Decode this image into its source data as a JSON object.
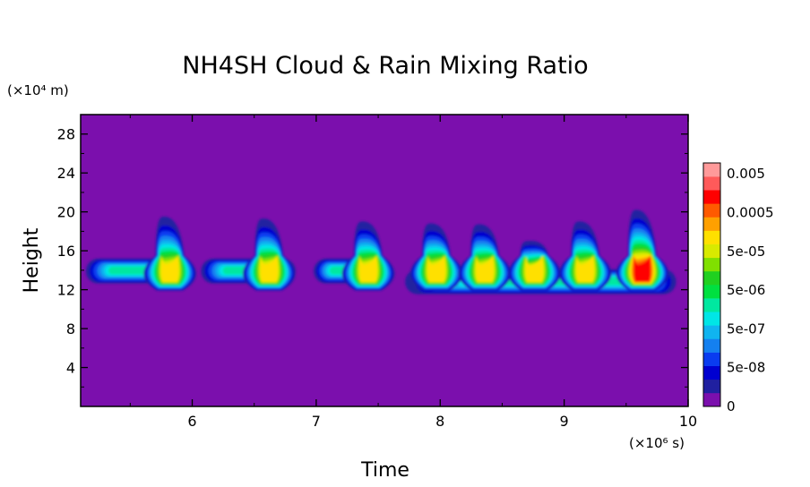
{
  "chart_data": {
    "type": "heatmap",
    "title": "NH4SH Cloud & Rain Mixing Ratio",
    "xlabel": "Time",
    "ylabel": "Height",
    "x_unit": "(×10⁶ s)",
    "y_unit": "(×10⁴ m)",
    "xlim": [
      5.1,
      10
    ],
    "ylim": [
      0,
      30
    ],
    "x_ticks": [
      6,
      7,
      8,
      9,
      10
    ],
    "y_ticks": [
      4,
      8,
      12,
      16,
      20,
      24,
      28
    ],
    "background_color": "#7b0fad",
    "colorbar": {
      "levels": [
        "0",
        "",
        "5e-08",
        "",
        "5e-07",
        "",
        "5e-06",
        "",
        "5e-05",
        "",
        "0.0005",
        "",
        "0.005",
        ""
      ],
      "labels": [
        "0",
        "5e-08",
        "5e-07",
        "5e-06",
        "5e-05",
        "0.0005",
        "0.005"
      ],
      "colors": [
        "#7b0fad",
        "#2020a0",
        "#0000d0",
        "#0a3cf0",
        "#1480f0",
        "#10b4f0",
        "#00e6e6",
        "#00e8a0",
        "#00e040",
        "#20d020",
        "#80e000",
        "#d8ea00",
        "#ffe000",
        "#ffa000",
        "#ff5a00",
        "#ff0000",
        "#ff5a5a",
        "#ff9a9a"
      ]
    },
    "cells": [
      {
        "time": 5.82,
        "height": 13.5,
        "peak_level": 12,
        "top": 19.5
      },
      {
        "time": 6.62,
        "height": 13.5,
        "peak_level": 12,
        "top": 19.3
      },
      {
        "time": 7.42,
        "height": 13.5,
        "peak_level": 12,
        "top": 19.0
      },
      {
        "time": 7.97,
        "height": 13.5,
        "peak_level": 12,
        "top": 18.8
      },
      {
        "time": 8.36,
        "height": 13.5,
        "peak_level": 12,
        "top": 18.7
      },
      {
        "time": 8.76,
        "height": 13.5,
        "peak_level": 12,
        "top": 17.0
      },
      {
        "time": 9.17,
        "height": 13.5,
        "peak_level": 12,
        "top": 19.0
      },
      {
        "time": 9.63,
        "height": 13.5,
        "peak_level": 15,
        "top": 20.2
      }
    ],
    "anvils": [
      {
        "x_start": 5.1,
        "x_end": 5.95,
        "height": 14.0
      },
      {
        "x_start": 6.03,
        "x_end": 6.85,
        "height": 14.0
      },
      {
        "x_start": 6.95,
        "x_end": 7.55,
        "height": 14.0
      },
      {
        "x_start": 7.6,
        "x_end": 9.95,
        "height": 12.9
      }
    ]
  }
}
